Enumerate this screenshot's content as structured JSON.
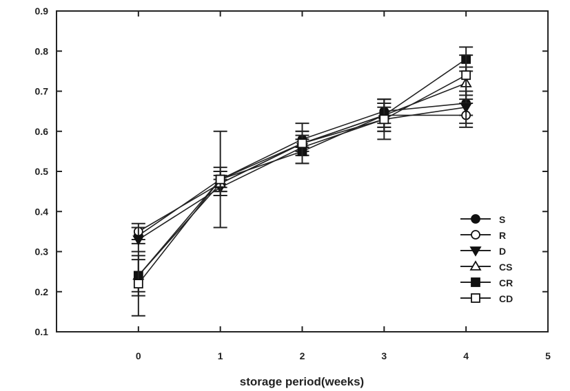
{
  "chart_data": {
    "type": "line",
    "title": "",
    "xlabel": "storage period(weeks)",
    "ylabel": "",
    "x": [
      0,
      1,
      2,
      3,
      4
    ],
    "xlim": [
      -1,
      5
    ],
    "ylim": [
      0.1,
      0.9
    ],
    "xticks": [
      "0",
      "1",
      "2",
      "3",
      "4",
      "5"
    ],
    "yticks": [
      "0.1",
      "0.2",
      "0.3",
      "0.4",
      "0.5",
      "0.6",
      "0.7",
      "0.8",
      "0.9"
    ],
    "grid": false,
    "legend_position": "bottom-right",
    "series": [
      {
        "name": "S",
        "marker": "circle-filled",
        "values": [
          0.34,
          0.48,
          0.58,
          0.65,
          0.67
        ],
        "errors": [
          0.02,
          0.02,
          0.02,
          0.03,
          0.03
        ]
      },
      {
        "name": "R",
        "marker": "circle-open",
        "values": [
          0.35,
          0.47,
          0.57,
          0.64,
          0.64
        ],
        "errors": [
          0.02,
          0.02,
          0.02,
          0.03,
          0.03
        ]
      },
      {
        "name": "D",
        "marker": "triangle-down-filled",
        "values": [
          0.33,
          0.46,
          0.56,
          0.63,
          0.66
        ],
        "errors": [
          0.03,
          0.02,
          0.02,
          0.03,
          0.04
        ]
      },
      {
        "name": "CS",
        "marker": "triangle-up-open",
        "values": [
          0.24,
          0.47,
          0.57,
          0.64,
          0.72
        ],
        "errors": [
          0.04,
          0.03,
          0.03,
          0.03,
          0.04
        ]
      },
      {
        "name": "CR",
        "marker": "square-filled",
        "values": [
          0.24,
          0.48,
          0.55,
          0.64,
          0.78
        ],
        "errors": [
          0.05,
          0.03,
          0.03,
          0.04,
          0.03
        ]
      },
      {
        "name": "CD",
        "marker": "square-open",
        "values": [
          0.22,
          0.48,
          0.57,
          0.63,
          0.74
        ],
        "errors": [
          0.08,
          0.12,
          0.05,
          0.05,
          0.05
        ]
      }
    ]
  }
}
